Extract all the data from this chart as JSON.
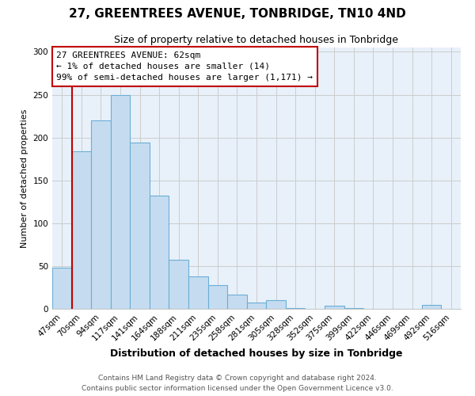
{
  "title": "27, GREENTREES AVENUE, TONBRIDGE, TN10 4ND",
  "subtitle": "Size of property relative to detached houses in Tonbridge",
  "xlabel": "Distribution of detached houses by size in Tonbridge",
  "ylabel": "Number of detached properties",
  "bar_labels": [
    "47sqm",
    "70sqm",
    "94sqm",
    "117sqm",
    "141sqm",
    "164sqm",
    "188sqm",
    "211sqm",
    "235sqm",
    "258sqm",
    "281sqm",
    "305sqm",
    "328sqm",
    "352sqm",
    "375sqm",
    "399sqm",
    "422sqm",
    "446sqm",
    "469sqm",
    "492sqm",
    "516sqm"
  ],
  "bar_heights": [
    48,
    184,
    220,
    250,
    194,
    132,
    57,
    38,
    28,
    17,
    7,
    10,
    1,
    0,
    4,
    1,
    0,
    0,
    0,
    5,
    0
  ],
  "bar_color": "#C5DCF0",
  "bar_edge_color": "#6BAED6",
  "plot_bg_color": "#E8F1FA",
  "annotation_box_text": "27 GREENTREES AVENUE: 62sqm\n← 1% of detached houses are smaller (14)\n99% of semi-detached houses are larger (1,171) →",
  "annotation_box_edge_color": "#C00000",
  "vline_color": "#C00000",
  "ylim": [
    0,
    305
  ],
  "yticks": [
    0,
    50,
    100,
    150,
    200,
    250,
    300
  ],
  "footer_line1": "Contains HM Land Registry data © Crown copyright and database right 2024.",
  "footer_line2": "Contains public sector information licensed under the Open Government Licence v3.0.",
  "background_color": "#FFFFFF",
  "grid_color": "#CCCCCC",
  "title_fontsize": 11,
  "subtitle_fontsize": 9,
  "xlabel_fontsize": 9,
  "ylabel_fontsize": 8,
  "tick_fontsize": 7.5,
  "annotation_fontsize": 8,
  "footer_fontsize": 6.5
}
